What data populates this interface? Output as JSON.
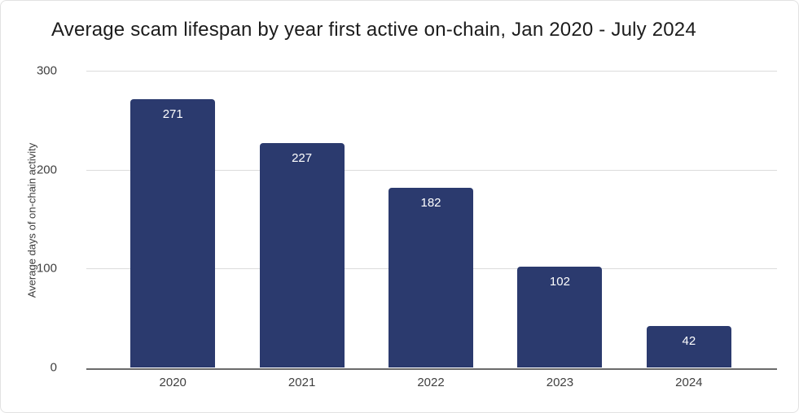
{
  "page": {
    "background": "#ffffff",
    "border_color": "#e2e2e2"
  },
  "chart_data": {
    "type": "bar",
    "title": "Average scam lifespan by year first active on-chain, Jan 2020 - July 2024",
    "categories": [
      "2020",
      "2021",
      "2022",
      "2023",
      "2024"
    ],
    "values": [
      271,
      227,
      182,
      102,
      42
    ],
    "value_labels": [
      "271",
      "227",
      "182",
      "102",
      "42"
    ],
    "xlabel": "",
    "ylabel": "Average days of on-chain activity",
    "y_ticks": [
      0,
      100,
      200,
      300
    ],
    "ylim": [
      0,
      300
    ],
    "grid": true,
    "legend": "none",
    "colors": {
      "bar": "#2b3a6e",
      "bar_value_label": "#ffffff",
      "gridline": "#dcdcdc",
      "baseline": "#6b6b6b",
      "title": "#1c1c1c",
      "axis_text": "#404040"
    }
  }
}
